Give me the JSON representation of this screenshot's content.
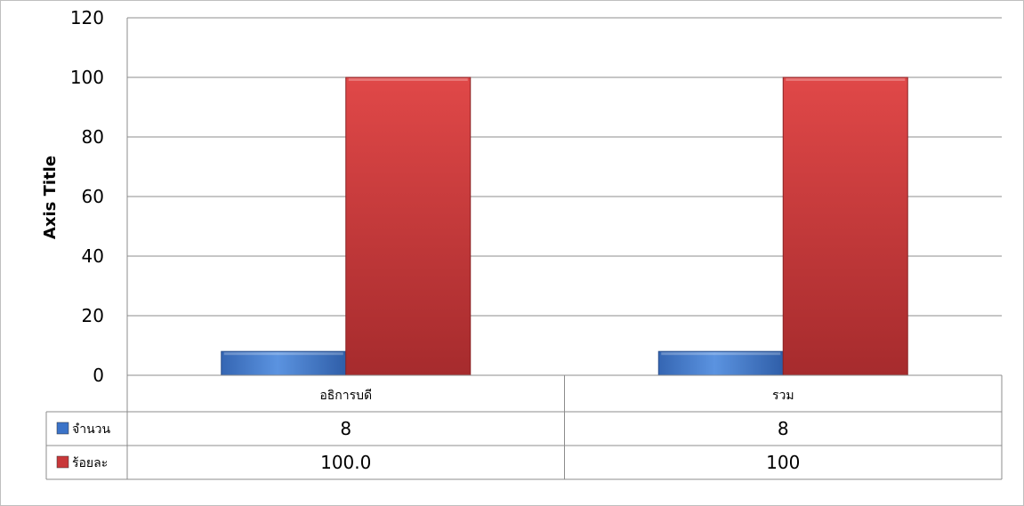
{
  "chart_data": {
    "type": "bar",
    "ylabel": "Axis Title",
    "ylim": [
      0,
      120
    ],
    "yticks": [
      0,
      20,
      40,
      60,
      80,
      100,
      120
    ],
    "categories": [
      "อธิการบดี",
      "รวม"
    ],
    "series": [
      {
        "name": "จำนวน",
        "values": [
          8,
          8
        ],
        "table_labels": [
          "8",
          "8"
        ],
        "color": "#4a7fd0"
      },
      {
        "name": "ร้อยละ",
        "values": [
          100,
          100
        ],
        "table_labels": [
          "100.0",
          "100"
        ],
        "color": "#c0393b"
      }
    ],
    "grid": true,
    "data_table": true
  }
}
